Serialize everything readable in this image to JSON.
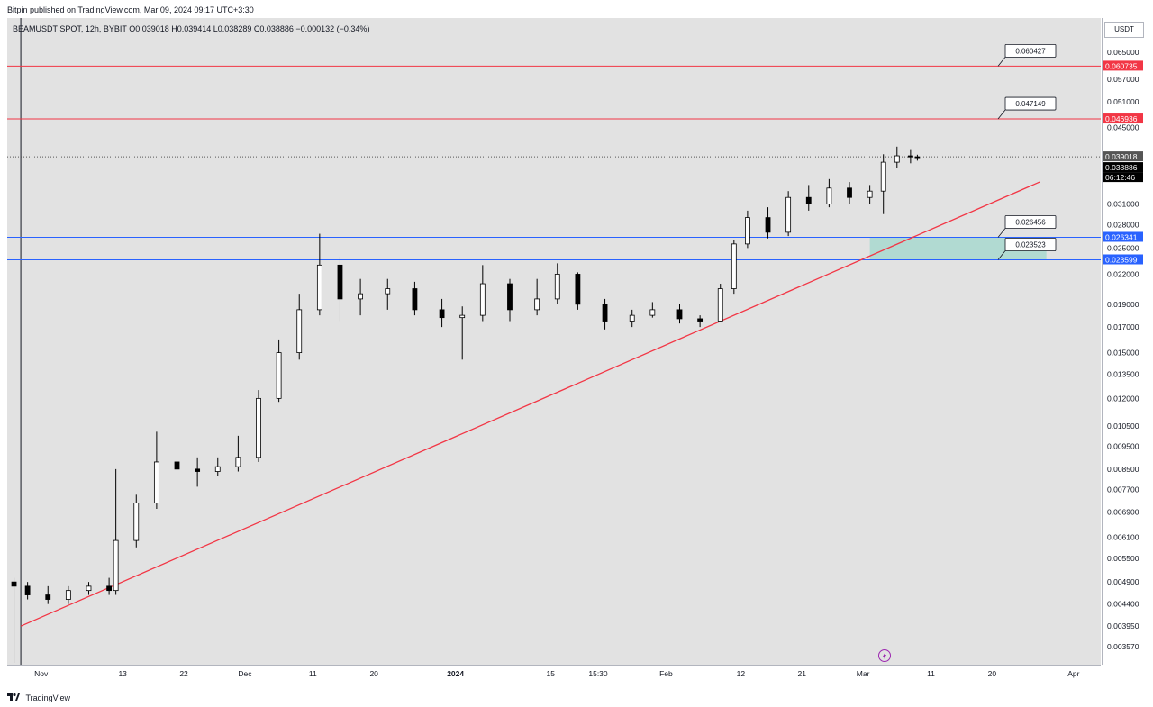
{
  "header": {
    "published_text": "Bitpin published on TradingView.com, Mar 09, 2024 09:17 UTC+3:30",
    "symbol_line": "BEAMUSDT SPOT, 12h, BYBIT  O0.039018  H0.039414  L0.038289  C0.038886  −0.000132 (−0.34%)"
  },
  "price_scale": {
    "currency_button": "USDT",
    "ticks": [
      "0.065000",
      "0.057000",
      "0.051000",
      "0.045000",
      "0.031000",
      "0.028000",
      "0.025000",
      "0.022000",
      "0.019000",
      "0.017000",
      "0.015000",
      "0.013500",
      "0.012000",
      "0.010500",
      "0.009500",
      "0.008500",
      "0.007700",
      "0.006900",
      "0.006100",
      "0.005500",
      "0.004900",
      "0.004400",
      "0.003950",
      "0.003570"
    ],
    "badges": [
      {
        "label": "0.060735",
        "color": "#f23645"
      },
      {
        "label": "0.046936",
        "color": "#f23645"
      },
      {
        "label": "0.039018",
        "color": "#555555"
      },
      {
        "label": "0.038886",
        "color": "#000000"
      },
      {
        "label": "06:12:46",
        "color": "#000000"
      },
      {
        "label": "0.026341",
        "color": "#2962ff"
      },
      {
        "label": "0.023599",
        "color": "#2962ff"
      }
    ]
  },
  "time_axis": {
    "labels": [
      "Nov",
      "13",
      "22",
      "Dec",
      "11",
      "20",
      "2024",
      "15",
      "15:30",
      "Feb",
      "12",
      "21",
      "Mar",
      "11",
      "20",
      "Apr"
    ]
  },
  "annotations": {
    "callouts": [
      "0.060427",
      "0.047149",
      "0.026456",
      "0.023523"
    ]
  },
  "footer": {
    "brand": "TradingView"
  },
  "colors": {
    "resistance_line": "#f23645",
    "support_line": "#2962ff",
    "trendline": "#f23645",
    "zone_fill": "#a8d8cf",
    "candle_up": "#ffffff",
    "candle_down": "#000000",
    "background": "#e2e2e2"
  },
  "chart_data": {
    "type": "candlestick",
    "symbol": "BEAMUSDT",
    "interval": "12h",
    "exchange": "BYBIT",
    "y_scale": "log",
    "ylim": [
      0.00345,
      0.0735
    ],
    "x_range": [
      "2023-10-27",
      "2024-04-05"
    ],
    "ohlc": [
      {
        "t": "2023-10-28",
        "o": 0.0049,
        "h": 0.005,
        "l": 0.0033,
        "c": 0.0048
      },
      {
        "t": "2023-10-30",
        "o": 0.0048,
        "h": 0.0049,
        "l": 0.0045,
        "c": 0.0046
      },
      {
        "t": "2023-11-02",
        "o": 0.0046,
        "h": 0.0048,
        "l": 0.0044,
        "c": 0.0045
      },
      {
        "t": "2023-11-05",
        "o": 0.0045,
        "h": 0.0048,
        "l": 0.0044,
        "c": 0.0047
      },
      {
        "t": "2023-11-08",
        "o": 0.0047,
        "h": 0.0049,
        "l": 0.0046,
        "c": 0.0048
      },
      {
        "t": "2023-11-11",
        "o": 0.0048,
        "h": 0.005,
        "l": 0.0046,
        "c": 0.0047
      },
      {
        "t": "2023-11-12",
        "o": 0.0047,
        "h": 0.0085,
        "l": 0.0046,
        "c": 0.006
      },
      {
        "t": "2023-11-15",
        "o": 0.006,
        "h": 0.0075,
        "l": 0.0058,
        "c": 0.0072
      },
      {
        "t": "2023-11-18",
        "o": 0.0072,
        "h": 0.0102,
        "l": 0.007,
        "c": 0.0088
      },
      {
        "t": "2023-11-21",
        "o": 0.0088,
        "h": 0.0101,
        "l": 0.008,
        "c": 0.0085
      },
      {
        "t": "2023-11-24",
        "o": 0.0085,
        "h": 0.009,
        "l": 0.0078,
        "c": 0.0084
      },
      {
        "t": "2023-11-27",
        "o": 0.0084,
        "h": 0.009,
        "l": 0.0082,
        "c": 0.0086
      },
      {
        "t": "2023-11-30",
        "o": 0.0086,
        "h": 0.01,
        "l": 0.0084,
        "c": 0.009
      },
      {
        "t": "2023-12-03",
        "o": 0.009,
        "h": 0.0125,
        "l": 0.0088,
        "c": 0.012
      },
      {
        "t": "2023-12-06",
        "o": 0.012,
        "h": 0.016,
        "l": 0.0118,
        "c": 0.015
      },
      {
        "t": "2023-12-09",
        "o": 0.015,
        "h": 0.02,
        "l": 0.0145,
        "c": 0.0185
      },
      {
        "t": "2023-12-12",
        "o": 0.0185,
        "h": 0.0268,
        "l": 0.018,
        "c": 0.023
      },
      {
        "t": "2023-12-15",
        "o": 0.023,
        "h": 0.024,
        "l": 0.0175,
        "c": 0.0195
      },
      {
        "t": "2023-12-18",
        "o": 0.0195,
        "h": 0.0215,
        "l": 0.018,
        "c": 0.02
      },
      {
        "t": "2023-12-22",
        "o": 0.02,
        "h": 0.0215,
        "l": 0.0185,
        "c": 0.0205
      },
      {
        "t": "2023-12-26",
        "o": 0.0205,
        "h": 0.0212,
        "l": 0.018,
        "c": 0.0185
      },
      {
        "t": "2023-12-30",
        "o": 0.0185,
        "h": 0.0195,
        "l": 0.017,
        "c": 0.0178
      },
      {
        "t": "2024-01-02",
        "o": 0.0178,
        "h": 0.0188,
        "l": 0.0145,
        "c": 0.018
      },
      {
        "t": "2024-01-05",
        "o": 0.018,
        "h": 0.023,
        "l": 0.0175,
        "c": 0.021
      },
      {
        "t": "2024-01-09",
        "o": 0.021,
        "h": 0.0215,
        "l": 0.0175,
        "c": 0.0185
      },
      {
        "t": "2024-01-13",
        "o": 0.0185,
        "h": 0.0215,
        "l": 0.018,
        "c": 0.0195
      },
      {
        "t": "2024-01-16",
        "o": 0.0195,
        "h": 0.0232,
        "l": 0.019,
        "c": 0.022
      },
      {
        "t": "2024-01-19",
        "o": 0.022,
        "h": 0.0222,
        "l": 0.0185,
        "c": 0.019
      },
      {
        "t": "2024-01-23",
        "o": 0.019,
        "h": 0.0195,
        "l": 0.0168,
        "c": 0.0175
      },
      {
        "t": "2024-01-27",
        "o": 0.0175,
        "h": 0.0185,
        "l": 0.017,
        "c": 0.018
      },
      {
        "t": "2024-01-30",
        "o": 0.018,
        "h": 0.0192,
        "l": 0.0178,
        "c": 0.0185
      },
      {
        "t": "2024-02-03",
        "o": 0.0185,
        "h": 0.019,
        "l": 0.0173,
        "c": 0.0177
      },
      {
        "t": "2024-02-06",
        "o": 0.0177,
        "h": 0.018,
        "l": 0.017,
        "c": 0.0175
      },
      {
        "t": "2024-02-09",
        "o": 0.0175,
        "h": 0.021,
        "l": 0.0174,
        "c": 0.0205
      },
      {
        "t": "2024-02-11",
        "o": 0.0205,
        "h": 0.026,
        "l": 0.02,
        "c": 0.0255
      },
      {
        "t": "2024-02-13",
        "o": 0.0255,
        "h": 0.03,
        "l": 0.025,
        "c": 0.029
      },
      {
        "t": "2024-02-16",
        "o": 0.029,
        "h": 0.0305,
        "l": 0.0262,
        "c": 0.027
      },
      {
        "t": "2024-02-19",
        "o": 0.027,
        "h": 0.033,
        "l": 0.0265,
        "c": 0.032
      },
      {
        "t": "2024-02-22",
        "o": 0.032,
        "h": 0.034,
        "l": 0.03,
        "c": 0.031
      },
      {
        "t": "2024-02-25",
        "o": 0.031,
        "h": 0.035,
        "l": 0.0305,
        "c": 0.0335
      },
      {
        "t": "2024-02-28",
        "o": 0.0335,
        "h": 0.0345,
        "l": 0.031,
        "c": 0.032
      },
      {
        "t": "2024-03-02",
        "o": 0.032,
        "h": 0.034,
        "l": 0.031,
        "c": 0.033
      },
      {
        "t": "2024-03-04",
        "o": 0.033,
        "h": 0.0395,
        "l": 0.0295,
        "c": 0.038
      },
      {
        "t": "2024-03-06",
        "o": 0.038,
        "h": 0.041,
        "l": 0.037,
        "c": 0.0392
      },
      {
        "t": "2024-03-08",
        "o": 0.0392,
        "h": 0.0405,
        "l": 0.0378,
        "c": 0.039
      },
      {
        "t": "2024-03-09",
        "o": 0.039018,
        "h": 0.039414,
        "l": 0.038289,
        "c": 0.038886
      }
    ],
    "horizontal_levels": [
      {
        "price": 0.060735,
        "color": "#f23645"
      },
      {
        "price": 0.046936,
        "color": "#f23645"
      },
      {
        "price": 0.026341,
        "color": "#2962ff"
      },
      {
        "price": 0.023599,
        "color": "#2962ff"
      }
    ],
    "trendline": {
      "from": {
        "t": "2023-10-29",
        "price": 0.00395
      },
      "to": {
        "t": "2024-03-27",
        "price": 0.0345
      },
      "color": "#f23645"
    },
    "zone": {
      "t_start": "2024-03-02",
      "t_end": "2024-03-28",
      "price_low": 0.023599,
      "price_high": 0.026341
    },
    "last_price": 0.038886,
    "grid": false
  }
}
